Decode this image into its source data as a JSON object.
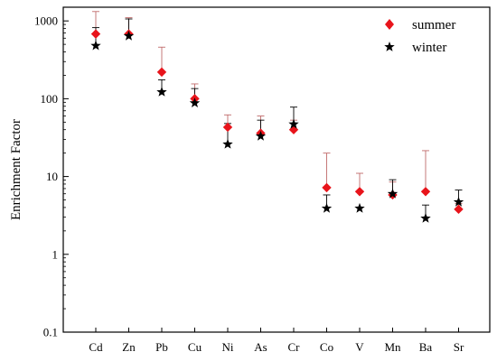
{
  "chart_data": {
    "type": "scatter",
    "title": "",
    "xlabel": "",
    "ylabel": "Enrichment Factor",
    "y_scale": "log",
    "ylim": [
      0.1,
      1500
    ],
    "y_ticks": [
      0.1,
      1,
      10,
      100,
      1000
    ],
    "y_tick_labels": [
      "0.1",
      "1",
      "10",
      "100",
      "1000"
    ],
    "categories": [
      "Cd",
      "Zn",
      "Pb",
      "Cu",
      "Ni",
      "As",
      "Cr",
      "Co",
      "V",
      "Mn",
      "Ba",
      "Sr"
    ],
    "legend_position": "top-right",
    "grid": false,
    "series": [
      {
        "name": "summer",
        "marker": "diamond",
        "color": "#e8141b",
        "errorbar_color": "#c06a6a",
        "values": [
          680,
          680,
          220,
          100,
          43,
          36,
          40,
          7.2,
          6.4,
          5.8,
          6.4,
          3.8
        ],
        "upper": [
          1320,
          1100,
          460,
          155,
          62,
          60,
          53,
          20,
          11,
          8.5,
          21.5,
          4.5
        ]
      },
      {
        "name": "winter",
        "marker": "star",
        "color": "#000000",
        "errorbar_color": "#000000",
        "values": [
          480,
          640,
          122,
          88,
          26,
          33,
          47,
          3.9,
          3.9,
          6.0,
          2.9,
          4.7
        ],
        "upper": [
          820,
          1060,
          175,
          135,
          48,
          53,
          78,
          5.8,
          3.9,
          9.1,
          4.3,
          6.7
        ]
      }
    ]
  }
}
